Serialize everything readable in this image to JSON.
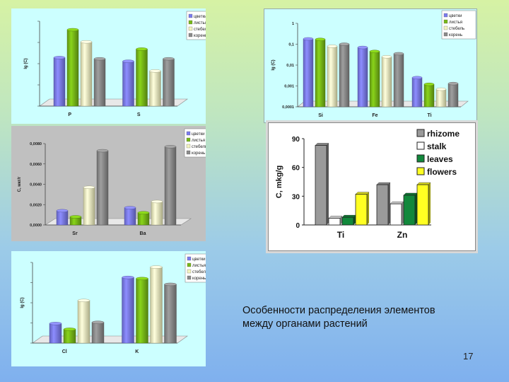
{
  "slide": {
    "caption_line1": "Особенности распределения элементов",
    "caption_line2": "между органами растений",
    "number": "17"
  },
  "colors": {
    "flowers": "#7b7bee",
    "leaves": "#77b817",
    "stalk": "#f4f4c0",
    "root": "#8a8a8a"
  },
  "chart_data": [
    {
      "id": "chart1",
      "type": "bar",
      "categories": [
        "P",
        "S"
      ],
      "series": [
        {
          "name": "цветки",
          "values": [
            2.0,
            1.85
          ]
        },
        {
          "name": "листья",
          "values": [
            3.15,
            2.35
          ]
        },
        {
          "name": "стебель",
          "values": [
            2.65,
            1.45
          ]
        },
        {
          "name": "корень",
          "values": [
            1.95,
            1.95
          ]
        }
      ],
      "ylabel": "lg (C)",
      "ylim": [
        0,
        3.5
      ],
      "legend": "top-right",
      "y_tick_labels": [
        "",
        "",
        "",
        "",
        ""
      ]
    },
    {
      "id": "chart2",
      "type": "bar",
      "categories": [
        "Si",
        "Fe",
        "Ti"
      ],
      "series": [
        {
          "name": "цветки",
          "values": [
            0.18,
            0.07,
            0.0025
          ]
        },
        {
          "name": "листья",
          "values": [
            0.17,
            0.045,
            0.0012
          ]
        },
        {
          "name": "стебель",
          "values": [
            0.08,
            0.025,
            0.0007
          ]
        },
        {
          "name": "корень",
          "values": [
            0.1,
            0.035,
            0.0013
          ]
        }
      ],
      "ylabel": "lg (C)",
      "ylim": [
        0.0001,
        1
      ],
      "scale": "log",
      "legend": "top-right",
      "y_tick_labels": [
        "1",
        "0,1",
        "0,01",
        "0,001",
        "0,0001"
      ]
    },
    {
      "id": "chart3",
      "type": "bar",
      "categories": [
        "Sr",
        "Ba"
      ],
      "series": [
        {
          "name": "цветки",
          "values": [
            0.0014,
            0.0017
          ]
        },
        {
          "name": "листья",
          "values": [
            0.0008,
            0.0012
          ]
        },
        {
          "name": "стебель",
          "values": [
            0.0037,
            0.0023
          ]
        },
        {
          "name": "корень",
          "values": [
            0.0073,
            0.0077
          ]
        }
      ],
      "ylabel": "C, мкг/г",
      "ylim": [
        0,
        0.008
      ],
      "legend": "top-right",
      "y_tick_labels": [
        "0,0080",
        "0,0060",
        "0,0040",
        "0,0020",
        "0,0000"
      ]
    },
    {
      "id": "chart4",
      "type": "bar",
      "categories": [
        "Ti",
        "Zn"
      ],
      "series": [
        {
          "name": "rhizome",
          "values": [
            83,
            42
          ]
        },
        {
          "name": "stalk",
          "values": [
            7,
            22
          ]
        },
        {
          "name": "leaves",
          "values": [
            8,
            31
          ]
        },
        {
          "name": "flowers",
          "values": [
            32,
            42
          ]
        }
      ],
      "ylabel": "C, mkg/g",
      "ylim": [
        0,
        90
      ],
      "legend": "top-right",
      "y_tick_labels": [
        "90",
        "60",
        "30",
        "0"
      ]
    },
    {
      "id": "chart5",
      "type": "bar",
      "categories": [
        "Cl",
        "K"
      ],
      "series": [
        {
          "name": "цветки",
          "values": [
            0.85,
            2.85
          ]
        },
        {
          "name": "листья",
          "values": [
            0.6,
            2.8
          ]
        },
        {
          "name": "стебель",
          "values": [
            1.85,
            3.3
          ]
        },
        {
          "name": "корень",
          "values": [
            0.9,
            2.55
          ]
        }
      ],
      "ylabel": "lg (C)",
      "ylim": [
        0,
        3.5
      ],
      "legend": "top-right",
      "y_tick_labels": [
        "",
        "",
        "",
        "",
        ""
      ]
    }
  ]
}
